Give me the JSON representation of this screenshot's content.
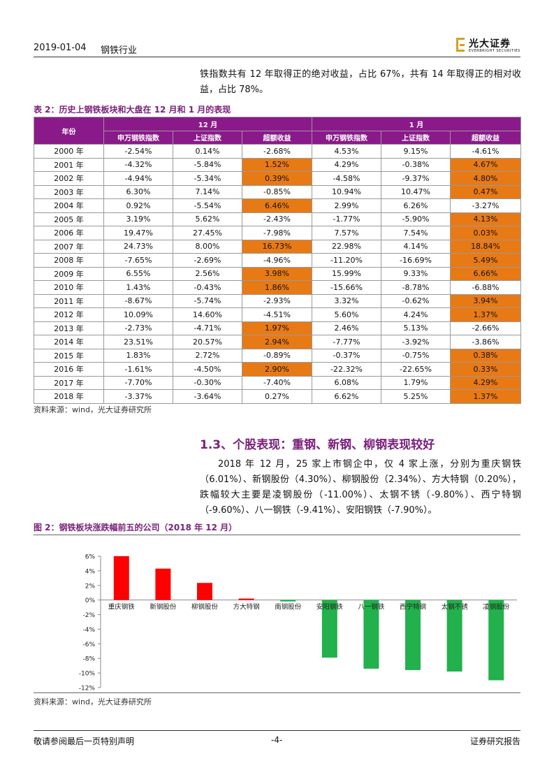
{
  "header": {
    "date": "2019-01-04",
    "industry": "钢铁行业",
    "logo_cn": "光大证券",
    "logo_en": "EVERBRIGHT SECURITIES"
  },
  "intro_text": "铁指数共有 12 年取得正的绝对收益，占比 67%，共有 14 年取得正的相对收益，占比 78%。",
  "table": {
    "caption": "表 2：历史上钢铁板块和大盘在 12 月和 1 月的表现",
    "year_header": "年份",
    "group_headers": [
      "12 月",
      "1 月"
    ],
    "sub_headers": [
      "申万钢铁指数",
      "上证指数",
      "超额收益",
      "申万钢铁指数",
      "上证指数",
      "超额收益"
    ],
    "rows": [
      {
        "year": "2000 年",
        "cells": [
          "-2.54%",
          "0.14%",
          "-2.68%",
          "4.53%",
          "9.15%",
          "-4.61%"
        ],
        "hl": [
          false,
          false
        ]
      },
      {
        "year": "2001 年",
        "cells": [
          "-4.32%",
          "-5.84%",
          "1.52%",
          "4.29%",
          "-0.38%",
          "4.67%"
        ],
        "hl": [
          true,
          true
        ]
      },
      {
        "year": "2002 年",
        "cells": [
          "-4.94%",
          "-5.34%",
          "0.39%",
          "-4.58%",
          "-9.37%",
          "4.80%"
        ],
        "hl": [
          true,
          true
        ]
      },
      {
        "year": "2003 年",
        "cells": [
          "6.30%",
          "7.14%",
          "-0.85%",
          "10.94%",
          "10.47%",
          "0.47%"
        ],
        "hl": [
          false,
          true
        ]
      },
      {
        "year": "2004 年",
        "cells": [
          "0.92%",
          "-5.54%",
          "6.46%",
          "2.99%",
          "6.26%",
          "-3.27%"
        ],
        "hl": [
          true,
          false
        ]
      },
      {
        "year": "2005 年",
        "cells": [
          "3.19%",
          "5.62%",
          "-2.43%",
          "-1.77%",
          "-5.90%",
          "4.13%"
        ],
        "hl": [
          false,
          true
        ]
      },
      {
        "year": "2006 年",
        "cells": [
          "19.47%",
          "27.45%",
          "-7.98%",
          "7.57%",
          "7.54%",
          "0.03%"
        ],
        "hl": [
          false,
          true
        ]
      },
      {
        "year": "2007 年",
        "cells": [
          "24.73%",
          "8.00%",
          "16.73%",
          "22.98%",
          "4.14%",
          "18.84%"
        ],
        "hl": [
          true,
          true
        ]
      },
      {
        "year": "2008 年",
        "cells": [
          "-7.65%",
          "-2.69%",
          "-4.96%",
          "-11.20%",
          "-16.69%",
          "5.49%"
        ],
        "hl": [
          false,
          true
        ]
      },
      {
        "year": "2009 年",
        "cells": [
          "6.55%",
          "2.56%",
          "3.98%",
          "15.99%",
          "9.33%",
          "6.66%"
        ],
        "hl": [
          true,
          true
        ]
      },
      {
        "year": "2010 年",
        "cells": [
          "1.43%",
          "-0.43%",
          "1.86%",
          "-15.66%",
          "-8.78%",
          "-6.88%"
        ],
        "hl": [
          true,
          false
        ]
      },
      {
        "year": "2011 年",
        "cells": [
          "-8.67%",
          "-5.74%",
          "-2.93%",
          "3.32%",
          "-0.62%",
          "3.94%"
        ],
        "hl": [
          false,
          true
        ]
      },
      {
        "year": "2012 年",
        "cells": [
          "10.09%",
          "14.60%",
          "-4.51%",
          "5.60%",
          "4.24%",
          "1.37%"
        ],
        "hl": [
          false,
          true
        ]
      },
      {
        "year": "2013 年",
        "cells": [
          "-2.73%",
          "-4.71%",
          "1.97%",
          "2.46%",
          "5.13%",
          "-2.66%"
        ],
        "hl": [
          true,
          false
        ]
      },
      {
        "year": "2014 年",
        "cells": [
          "23.51%",
          "20.57%",
          "2.94%",
          "-7.77%",
          "-3.92%",
          "-3.86%"
        ],
        "hl": [
          true,
          false
        ]
      },
      {
        "year": "2015 年",
        "cells": [
          "1.83%",
          "2.72%",
          "-0.89%",
          "-0.37%",
          "-0.75%",
          "0.38%"
        ],
        "hl": [
          false,
          true
        ]
      },
      {
        "year": "2016 年",
        "cells": [
          "-1.61%",
          "-4.50%",
          "2.90%",
          "-22.32%",
          "-22.65%",
          "0.33%"
        ],
        "hl": [
          true,
          true
        ]
      },
      {
        "year": "2017 年",
        "cells": [
          "-7.70%",
          "-0.30%",
          "-7.40%",
          "6.08%",
          "1.79%",
          "4.29%"
        ],
        "hl": [
          false,
          true
        ]
      },
      {
        "year": "2018 年",
        "cells": [
          "-3.37%",
          "-3.64%",
          "0.27%",
          "6.62%",
          "5.25%",
          "1.37%"
        ],
        "hl": [
          false,
          true
        ]
      }
    ],
    "source": "资料来源：wind，光大证券研究所"
  },
  "section": {
    "title": "1.3、个股表现：重钢、新钢、柳钢表现较好",
    "body": "2018 年 12 月，25 家上市钢企中，仅 4 家上涨，分别为重庆钢铁（6.01%）、新钢股份（4.30%）、柳钢股份（2.34%）、方大特钢（0.20%），跌幅较大主要是凌钢股份（-11.00%）、太钢不锈（-9.80%）、西宁特钢（-9.60%）、八一钢铁（-9.41%）、安阳钢铁（-7.90%）。"
  },
  "chart": {
    "caption": "图 2：钢铁板块涨跌幅前五的公司（2018 年 12 月）",
    "source": "资料来源：wind，光大证券研究所"
  },
  "chart_data": {
    "type": "bar",
    "categories": [
      "重庆钢铁",
      "新钢股份",
      "柳钢股份",
      "方大特钢",
      "南钢股份",
      "安阳钢铁",
      "八一钢铁",
      "西宁特钢",
      "太钢不锈",
      "凌钢股份"
    ],
    "values": [
      6.01,
      4.3,
      2.34,
      0.2,
      -0.2,
      -7.9,
      -9.41,
      -9.6,
      -9.8,
      -11.0
    ],
    "colors": {
      "positive": "#ff0000",
      "negative": "#22b14c"
    },
    "ylim": [
      -12,
      6
    ],
    "yticks": [
      "6%",
      "4%",
      "2%",
      "0%",
      "-2%",
      "-4%",
      "-6%",
      "-8%",
      "-10%",
      "-12%"
    ],
    "title": "",
    "xlabel": "",
    "ylabel": "",
    "grid": false
  },
  "footer": {
    "left": "敬请参阅最后一页特别声明",
    "center": "-4-",
    "right": "证券研究报告"
  }
}
